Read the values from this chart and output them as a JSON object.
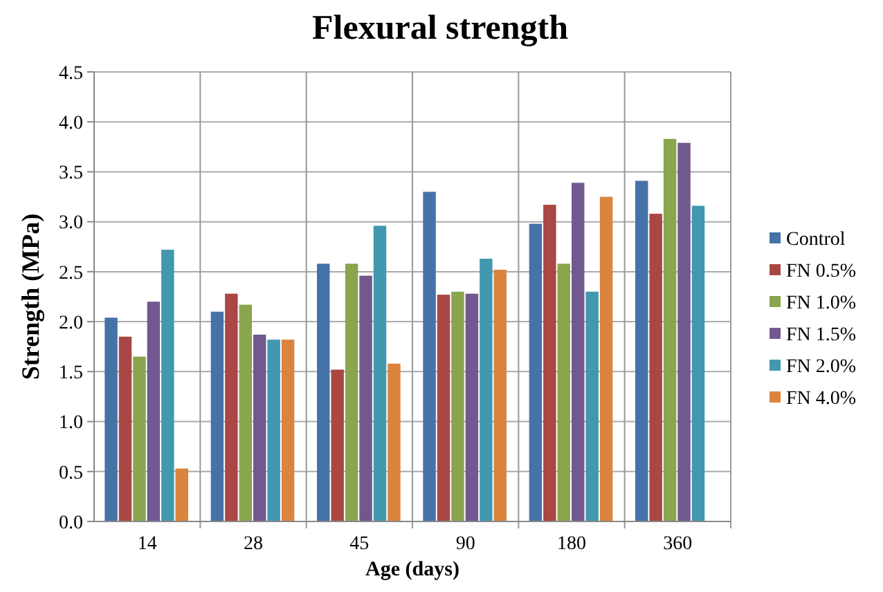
{
  "chart_data": {
    "type": "bar",
    "title": "Flexural strength",
    "xlabel": "Age (days)",
    "ylabel": "Strength (MPa)",
    "categories": [
      "14",
      "28",
      "45",
      "90",
      "180",
      "360"
    ],
    "series": [
      {
        "name": "Control",
        "color": "#4572a7",
        "values": [
          2.04,
          2.1,
          2.58,
          3.3,
          2.98,
          3.41
        ]
      },
      {
        "name": "FN 0.5%",
        "color": "#aa4643",
        "values": [
          1.85,
          2.28,
          1.52,
          2.27,
          3.17,
          3.08
        ]
      },
      {
        "name": "FN 1.0%",
        "color": "#89a54e",
        "values": [
          1.65,
          2.17,
          2.58,
          2.3,
          2.58,
          3.83
        ]
      },
      {
        "name": "FN 1.5%",
        "color": "#71588f",
        "values": [
          2.2,
          1.87,
          2.46,
          2.28,
          3.39,
          3.79
        ]
      },
      {
        "name": "FN 2.0%",
        "color": "#4198af",
        "values": [
          2.72,
          1.82,
          2.96,
          2.63,
          2.3,
          3.16
        ]
      },
      {
        "name": "FN 4.0%",
        "color": "#db843d",
        "values": [
          0.53,
          1.82,
          1.58,
          2.52,
          3.25,
          null
        ]
      }
    ],
    "ylim": [
      0,
      4.5
    ],
    "yticks": [
      {
        "value": 0,
        "label": "0.0"
      },
      {
        "value": 0.5,
        "label": "0.5"
      },
      {
        "value": 1,
        "label": "1.0"
      },
      {
        "value": 1.5,
        "label": "1.5"
      },
      {
        "value": 2,
        "label": "2.0"
      },
      {
        "value": 2.5,
        "label": "2.5"
      },
      {
        "value": 3,
        "label": "3.0"
      },
      {
        "value": 3.5,
        "label": "3.5"
      },
      {
        "value": 4,
        "label": "4.0"
      },
      {
        "value": 4.5,
        "label": "4.5"
      }
    ],
    "grid": "y",
    "legend": "right"
  }
}
